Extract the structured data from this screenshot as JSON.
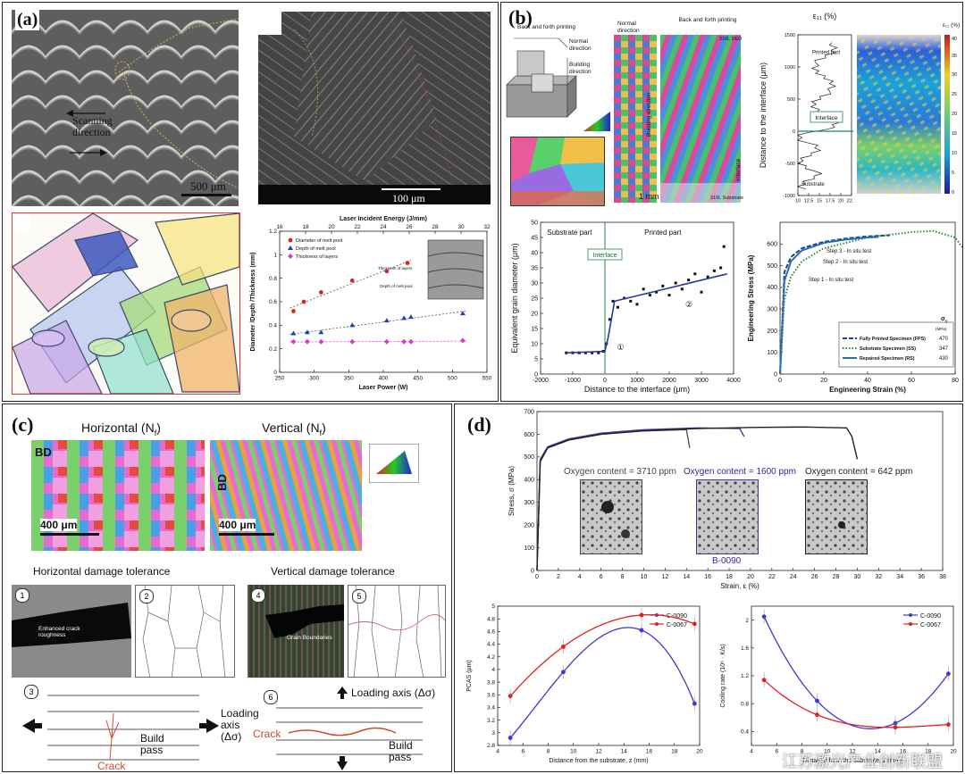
{
  "panels": {
    "a": {
      "label": "(a)",
      "sem_scanning": "Scanning\ndirection",
      "sem_scale": "500 μm",
      "micro_scale": "100 μm",
      "chart_top_axis_title": "Laser Incident Energy (J/mm)",
      "chart_inset_thickness": "Thickness of layers",
      "chart_inset_depth": "Depth of melt pool"
    },
    "b": {
      "label": "(b)",
      "schematic_title": "Back and forth printing",
      "schematic_normal": "Normal direction",
      "schematic_building": "Building direction",
      "ebsd_normal": "Normal direction",
      "ebsd_back": "Back and forth printing",
      "ebsd_building": "Building direction",
      "ebsd_interface": "Interface",
      "ebsd_scale": "1 mm",
      "ebsd_316_ded": "316L DED",
      "ebsd_316_sub": "316L Substrate",
      "strain_title": "ε₁₁ (%)",
      "strain_axis_label": "Distance to the interface (μm)",
      "strain_printed": "Printed part",
      "strain_interface": "Interface",
      "strain_substrate": "Substrate",
      "strain_colorbar_title": "ε₁₁ (%)"
    },
    "c": {
      "label": "(c)",
      "horizontal_title": "Horizontal  (N",
      "vertical_title": "Vertical  (N",
      "sub_f": "f",
      "close_paren": ")",
      "bd": "BD",
      "scale_400": "400 μm",
      "h_damage": "Horizontal  damage tolerance",
      "v_damage": "Vertical  damage tolerance",
      "step1": "1",
      "step2": "2",
      "step3": "3",
      "step4": "4",
      "step5": "5",
      "step6": "6",
      "enhanced": "Enhanced crack roughness",
      "grain_boundaries": "Grain Boundaries",
      "loading_axis": "Loading\naxis\n(Δσ)",
      "loading_axis_v": "Loading axis (Δσ)",
      "build_pass": "Build\npass",
      "crack": "Crack"
    },
    "d": {
      "label": "(d)",
      "oxygen1": "Oxygen content = 3710 ppm",
      "oxygen2": "Oxygen content = 1600 ppm",
      "oxygen3": "Oxygen content = 642 ppm",
      "b0090": "B-0090"
    },
    "watermark": "江苏激光产业创新联盟"
  },
  "chart_data": [
    {
      "id": "a-melt-pool",
      "type": "scatter",
      "xlabel": "Laser Power (W)",
      "ylabel": "Diameter /Depth /Thickness (mm)",
      "xlim": [
        250,
        550
      ],
      "ylim": [
        0.0,
        1.2
      ],
      "xticks": [
        250,
        300,
        350,
        400,
        450,
        500,
        550
      ],
      "yticks": [
        0.0,
        0.2,
        0.4,
        0.6,
        0.8,
        1.0,
        1.2
      ],
      "top_xticks": [
        16,
        18,
        20,
        22,
        24,
        26,
        28,
        30,
        32
      ],
      "series": [
        {
          "name": "Diameter of melt pool",
          "color": "#d62728",
          "marker": "circle",
          "x": [
            270,
            285,
            310,
            355,
            405,
            435
          ],
          "y": [
            0.52,
            0.6,
            0.68,
            0.78,
            0.86,
            0.93
          ]
        },
        {
          "name": "Depth of melt pool",
          "color": "#1f3fb4",
          "marker": "triangle",
          "x": [
            270,
            290,
            310,
            355,
            405,
            430,
            440,
            515
          ],
          "y": [
            0.33,
            0.34,
            0.34,
            0.4,
            0.44,
            0.46,
            0.47,
            0.5
          ]
        },
        {
          "name": "Thickness of layers",
          "color": "#d63cc8",
          "marker": "diamond",
          "x": [
            270,
            290,
            310,
            355,
            405,
            430,
            440,
            515
          ],
          "y": [
            0.26,
            0.26,
            0.26,
            0.26,
            0.26,
            0.26,
            0.26,
            0.27
          ]
        }
      ],
      "legend": "top-left"
    },
    {
      "id": "b-strain-profile",
      "type": "line",
      "title": "ε₁₁ (%)",
      "ylabel": "Distance to the interface (μm)",
      "xlim": [
        10,
        22.5
      ],
      "ylim": [
        -1000,
        1500
      ],
      "xticks": [
        10,
        12.5,
        15,
        17.5,
        20,
        22.5
      ],
      "yticks": [
        -1000,
        -500,
        0,
        500,
        1000,
        1500
      ]
    },
    {
      "id": "b-grain-diameter",
      "type": "scatter",
      "xlabel": "Distance to the interface (μm)",
      "ylabel": "Equivalent grain diameter (μm)",
      "xlim": [
        -2000,
        4000
      ],
      "ylim": [
        0,
        50
      ],
      "xticks": [
        -2000,
        -1000,
        0,
        1000,
        2000,
        3000,
        4000
      ],
      "yticks": [
        0,
        5,
        10,
        15,
        20,
        25,
        30,
        35,
        40,
        45,
        50
      ],
      "annotations": [
        "Substrate part",
        "Printed part",
        "Interface",
        "①",
        "②"
      ],
      "series": [
        {
          "name": "grain diameter",
          "x": [
            -1200,
            -1000,
            -800,
            -600,
            -400,
            -200,
            -50,
            50,
            150,
            250,
            400,
            600,
            800,
            1000,
            1200,
            1400,
            1600,
            1800,
            2000,
            2200,
            2400,
            2600,
            2800,
            3000,
            3200,
            3400,
            3600,
            3700
          ],
          "y": [
            7,
            7,
            7,
            7,
            7,
            7,
            7.5,
            10,
            18,
            24,
            22,
            25,
            24,
            23,
            28,
            26,
            27,
            29,
            26,
            30,
            28,
            31,
            33,
            27,
            32,
            34,
            35,
            42
          ]
        },
        {
          "name": "fit",
          "x": [
            -1200,
            0,
            100,
            300,
            3800
          ],
          "y": [
            7,
            7.5,
            12,
            24,
            33
          ]
        }
      ]
    },
    {
      "id": "b-stress-strain",
      "type": "line",
      "xlabel": "Engineering Strain (%)",
      "ylabel": "Engineering Stress (MPa)",
      "xlim": [
        0,
        80
      ],
      "ylim": [
        0,
        700
      ],
      "xticks": [
        0,
        20,
        40,
        60,
        80
      ],
      "yticks": [
        0,
        100,
        200,
        300,
        400,
        500,
        600
      ],
      "annotations": [
        "Step 3 - In situ test",
        "Step 2 - In situ test",
        "Step 1 - In situ test"
      ],
      "legend_header": "σ",
      "legend_header_sub": "y",
      "legend_unit": "(MPa)",
      "series": [
        {
          "name": "Fully Printed Specimen (FPS)",
          "yield": "470",
          "style": "dashed",
          "color": "#1f3f8f",
          "x": [
            0,
            2,
            5,
            10,
            20,
            30,
            40,
            50
          ],
          "y": [
            0,
            470,
            540,
            580,
            610,
            625,
            635,
            640
          ]
        },
        {
          "name": "Substrate Specimen (SS)",
          "yield": "347",
          "style": "dotted",
          "color": "#2a8a2a",
          "x": [
            0,
            2,
            5,
            10,
            20,
            40,
            60,
            70,
            80,
            85
          ],
          "y": [
            0,
            347,
            450,
            520,
            580,
            630,
            655,
            660,
            630,
            560
          ]
        },
        {
          "name": "Repaired Specimen (RS)",
          "yield": "430",
          "style": "solid",
          "color": "#2a6fb0",
          "x": [
            0,
            2,
            5,
            10,
            20,
            30,
            40,
            45
          ],
          "y": [
            0,
            430,
            520,
            570,
            605,
            620,
            630,
            632
          ]
        }
      ]
    },
    {
      "id": "d-stress-strain",
      "type": "line",
      "xlabel": "Strain, ε (%)",
      "ylabel": "Stress, σ (MPa)",
      "xlim": [
        0,
        38
      ],
      "ylim": [
        0,
        700
      ],
      "xticks": [
        0,
        2,
        4,
        6,
        8,
        10,
        12,
        14,
        16,
        18,
        20,
        22,
        24,
        26,
        28,
        30,
        32,
        34,
        36,
        38
      ],
      "yticks": [
        0,
        100,
        200,
        300,
        400,
        500,
        600,
        700
      ],
      "series": [
        {
          "name": "3710 ppm",
          "color": "#555555",
          "x": [
            0,
            0.3,
            1,
            3,
            6,
            10,
            14,
            14.3
          ],
          "y": [
            0,
            480,
            540,
            575,
            600,
            615,
            620,
            540
          ]
        },
        {
          "name": "1600 ppm",
          "color": "#3a3aa0",
          "x": [
            0,
            0.3,
            1,
            3,
            6,
            10,
            15,
            19,
            19.4
          ],
          "y": [
            0,
            490,
            545,
            580,
            605,
            620,
            628,
            625,
            590
          ]
        },
        {
          "name": "642 ppm",
          "color": "#222222",
          "x": [
            0,
            0.3,
            1,
            3,
            6,
            10,
            15,
            20,
            25,
            29,
            29.5,
            30
          ],
          "y": [
            0,
            480,
            540,
            575,
            600,
            615,
            625,
            630,
            632,
            628,
            590,
            490
          ]
        }
      ]
    },
    {
      "id": "d-pcas",
      "type": "line",
      "xlabel": "Distance from the substrate, z (mm)",
      "ylabel": "PCAS (μm)",
      "xlim": [
        4,
        20
      ],
      "ylim": [
        2.8,
        5.0
      ],
      "xticks": [
        4,
        6,
        8,
        10,
        12,
        14,
        16,
        18,
        20
      ],
      "yticks": [
        2.8,
        3.0,
        3.2,
        3.4,
        3.6,
        3.8,
        4.0,
        4.2,
        4.4,
        4.6,
        4.8,
        5.0
      ],
      "series": [
        {
          "name": "C-0090",
          "color": "#3a3ad0",
          "x": [
            5,
            9.2,
            15.4,
            19.6
          ],
          "y": [
            2.92,
            3.96,
            4.62,
            3.46
          ]
        },
        {
          "name": "C-0067",
          "color": "#e02020",
          "x": [
            5,
            9.2,
            15.4,
            19.6
          ],
          "y": [
            3.58,
            4.36,
            4.86,
            4.72
          ]
        }
      ],
      "legend": "top-right"
    },
    {
      "id": "d-cooling",
      "type": "line",
      "xlabel": "Distance from the substrate, z (mm)",
      "ylabel": "Cooling rate (10⁶ · K/s)",
      "xlim": [
        4,
        20
      ],
      "ylim": [
        0.2,
        2.2
      ],
      "xticks": [
        4,
        6,
        8,
        10,
        12,
        14,
        16,
        18,
        20
      ],
      "yticks": [
        0.4,
        0.8,
        1.2,
        1.6,
        2.0
      ],
      "series": [
        {
          "name": "C-0090",
          "color": "#3a3ad0",
          "x": [
            5,
            9.2,
            15.4,
            19.6
          ],
          "y": [
            2.05,
            0.84,
            0.52,
            1.23
          ]
        },
        {
          "name": "C-0067",
          "color": "#e02020",
          "x": [
            5,
            9.2,
            15.4,
            19.6
          ],
          "y": [
            1.14,
            0.64,
            0.46,
            0.5
          ]
        }
      ],
      "legend": "top-right"
    }
  ]
}
